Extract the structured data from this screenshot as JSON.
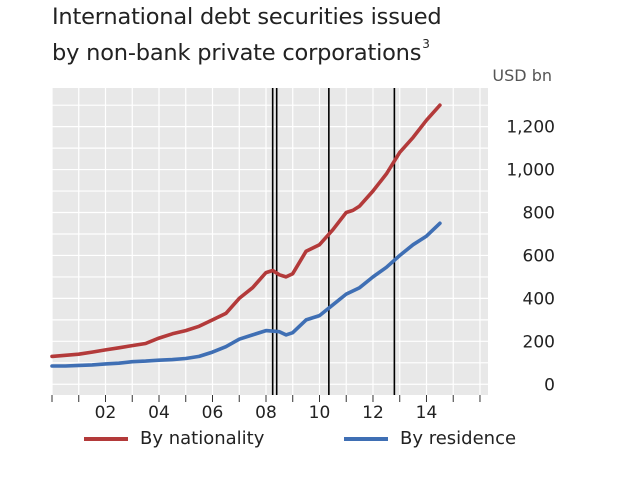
{
  "title": {
    "line1": "International debt securities issued",
    "line2": "by non-bank private corporations",
    "footnote": "3"
  },
  "colors": {
    "plot_bg": "#e8e8e8",
    "grid": "#ffffff",
    "nationality": "#b33a3a",
    "residence": "#3f6fb4",
    "vline": "#000000"
  },
  "chart_data": {
    "type": "line",
    "unit_label": "USD bn",
    "x_tick_labels": [
      "02",
      "04",
      "06",
      "08",
      "10",
      "12",
      "14"
    ],
    "x_tick_years": [
      2002,
      2004,
      2006,
      2008,
      2010,
      2012,
      2014
    ],
    "xlim": [
      2000.0,
      2016.3
    ],
    "y_ticks": [
      0,
      200,
      400,
      600,
      800,
      1000,
      1200
    ],
    "y_tick_labels": [
      "0",
      "200",
      "400",
      "600",
      "800",
      "1,000",
      "1,200"
    ],
    "ylim": [
      -50,
      1380
    ],
    "y_axis_position": "right",
    "grid": true,
    "vertical_markers": [
      2008.25,
      2008.4,
      2010.35,
      2012.8
    ],
    "legend_position": "bottom",
    "series": [
      {
        "name": "By nationality",
        "x": [
          2000.0,
          2000.5,
          2001.0,
          2001.5,
          2002.0,
          2002.5,
          2003.0,
          2003.5,
          2004.0,
          2004.5,
          2005.0,
          2005.5,
          2006.0,
          2006.5,
          2007.0,
          2007.5,
          2008.0,
          2008.25,
          2008.5,
          2008.75,
          2009.0,
          2009.5,
          2010.0,
          2010.5,
          2011.0,
          2011.25,
          2011.5,
          2012.0,
          2012.5,
          2013.0,
          2013.5,
          2014.0,
          2014.5
        ],
        "values": [
          130,
          135,
          140,
          150,
          160,
          170,
          180,
          190,
          215,
          235,
          250,
          270,
          300,
          330,
          400,
          450,
          520,
          530,
          510,
          500,
          515,
          620,
          650,
          720,
          800,
          810,
          830,
          900,
          980,
          1080,
          1150,
          1230,
          1300
        ]
      },
      {
        "name": "By residence",
        "x": [
          2000.0,
          2000.5,
          2001.0,
          2001.5,
          2002.0,
          2002.5,
          2003.0,
          2003.5,
          2004.0,
          2004.5,
          2005.0,
          2005.5,
          2006.0,
          2006.5,
          2007.0,
          2007.5,
          2008.0,
          2008.5,
          2008.75,
          2009.0,
          2009.5,
          2010.0,
          2010.5,
          2011.0,
          2011.5,
          2012.0,
          2012.5,
          2013.0,
          2013.5,
          2014.0,
          2014.5
        ],
        "values": [
          85,
          85,
          88,
          90,
          95,
          98,
          105,
          108,
          112,
          115,
          120,
          130,
          150,
          175,
          210,
          230,
          250,
          245,
          230,
          240,
          300,
          320,
          370,
          420,
          450,
          500,
          545,
          600,
          650,
          690,
          750
        ]
      }
    ]
  }
}
